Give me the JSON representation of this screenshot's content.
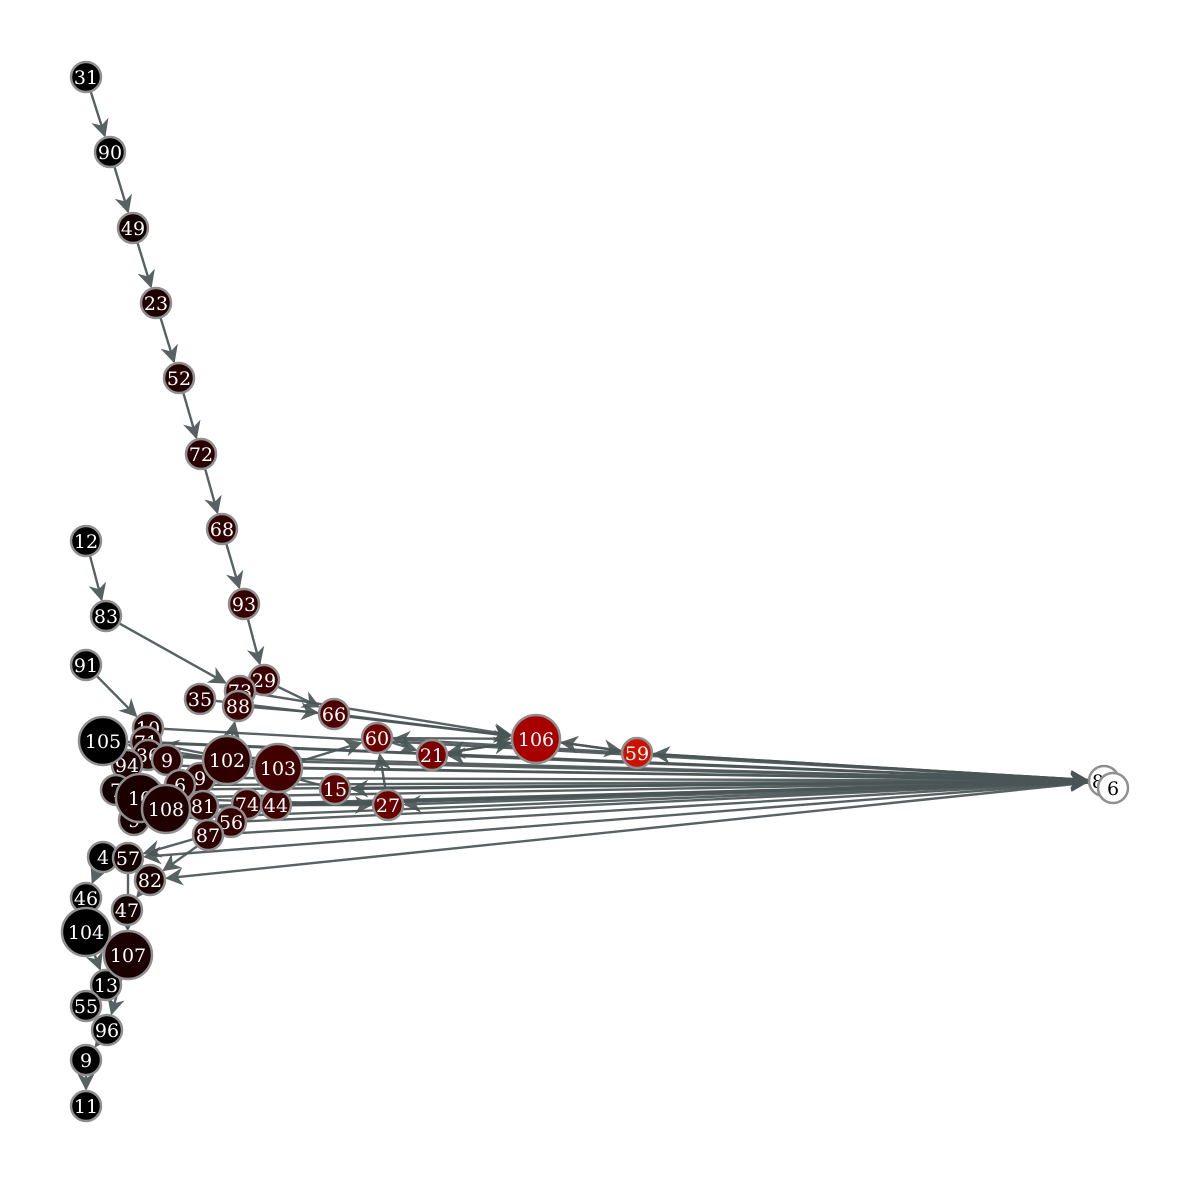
{
  "graph": {
    "nodes": [
      {
        "id": "31",
        "label": "31",
        "color": "#000000",
        "size": "small"
      },
      {
        "id": "90",
        "label": "90",
        "color": "#000000",
        "size": "small"
      },
      {
        "id": "49",
        "label": "49",
        "color": "#100000",
        "size": "small"
      },
      {
        "id": "23",
        "label": "23",
        "color": "#200000",
        "size": "small"
      },
      {
        "id": "52",
        "label": "52",
        "color": "#240000",
        "size": "small"
      },
      {
        "id": "72",
        "label": "72",
        "color": "#2a0000",
        "size": "small"
      },
      {
        "id": "68",
        "label": "68",
        "color": "#300000",
        "size": "small"
      },
      {
        "id": "93",
        "label": "93",
        "color": "#360000",
        "size": "small"
      },
      {
        "id": "29",
        "label": "29",
        "color": "#3c0000",
        "size": "small"
      },
      {
        "id": "12",
        "label": "12",
        "color": "#000000",
        "size": "small"
      },
      {
        "id": "83",
        "label": "83",
        "color": "#000000",
        "size": "small"
      },
      {
        "id": "91",
        "label": "91",
        "color": "#000000",
        "size": "small"
      },
      {
        "id": "35",
        "label": "35",
        "color": "#2a0000",
        "size": "small"
      },
      {
        "id": "73",
        "label": "73",
        "color": "#380000",
        "size": "small"
      },
      {
        "id": "88",
        "label": "88",
        "color": "#3a0000",
        "size": "small"
      },
      {
        "id": "66",
        "label": "66",
        "color": "#4e0000",
        "size": "small"
      },
      {
        "id": "60",
        "label": "60",
        "color": "#6e0000",
        "size": "small"
      },
      {
        "id": "21",
        "label": "21",
        "color": "#7a0000",
        "size": "small"
      },
      {
        "id": "106",
        "label": "106",
        "color": "#a80000",
        "size": "large"
      },
      {
        "id": "59",
        "label": "59",
        "color": "#cc1100",
        "size": "small"
      },
      {
        "id": "84",
        "label": "84",
        "color": "#ffffff",
        "size": "small"
      },
      {
        "id": "85",
        "label": "6",
        "color": "#ffffff",
        "size": "small"
      },
      {
        "id": "105",
        "label": "105",
        "color": "#000000",
        "size": "large"
      },
      {
        "id": "10",
        "label": "10",
        "color": "#220000",
        "size": "small"
      },
      {
        "id": "71",
        "label": "71",
        "color": "#250000",
        "size": "small"
      },
      {
        "id": "36",
        "label": "36",
        "color": "#260000",
        "size": "small"
      },
      {
        "id": "94",
        "label": "94",
        "color": "#1c0000",
        "size": "small"
      },
      {
        "id": "69",
        "label": "9",
        "color": "#2a0000",
        "size": "small"
      },
      {
        "id": "102",
        "label": "102",
        "color": "#300000",
        "size": "large"
      },
      {
        "id": "103",
        "label": "103",
        "color": "#420000",
        "size": "large"
      },
      {
        "id": "99",
        "label": "9",
        "color": "#2c0000",
        "size": "small"
      },
      {
        "id": "61",
        "label": "6",
        "color": "#280000",
        "size": "small"
      },
      {
        "id": "15",
        "label": "15",
        "color": "#5a0000",
        "size": "small"
      },
      {
        "id": "27",
        "label": "27",
        "color": "#6a0000",
        "size": "small"
      },
      {
        "id": "75",
        "label": "7",
        "color": "#120000",
        "size": "small"
      },
      {
        "id": "100",
        "label": "10",
        "color": "#1a0000",
        "size": "large"
      },
      {
        "id": "108",
        "label": "108",
        "color": "#200000",
        "size": "large"
      },
      {
        "id": "95",
        "label": "9",
        "color": "#160000",
        "size": "small"
      },
      {
        "id": "81",
        "label": "81",
        "color": "#2c0000",
        "size": "small"
      },
      {
        "id": "74",
        "label": "74",
        "color": "#3a0000",
        "size": "small"
      },
      {
        "id": "44",
        "label": "44",
        "color": "#400000",
        "size": "small"
      },
      {
        "id": "56",
        "label": "56",
        "color": "#340000",
        "size": "small"
      },
      {
        "id": "87",
        "label": "87",
        "color": "#300000",
        "size": "small"
      },
      {
        "id": "4",
        "label": "4",
        "color": "#000000",
        "size": "small"
      },
      {
        "id": "57",
        "label": "57",
        "color": "#120000",
        "size": "small"
      },
      {
        "id": "82",
        "label": "82",
        "color": "#1a0000",
        "size": "small"
      },
      {
        "id": "46",
        "label": "46",
        "color": "#000000",
        "size": "small"
      },
      {
        "id": "47",
        "label": "47",
        "color": "#140000",
        "size": "small"
      },
      {
        "id": "104",
        "label": "104",
        "color": "#000000",
        "size": "large"
      },
      {
        "id": "107",
        "label": "107",
        "color": "#1a0000",
        "size": "large"
      },
      {
        "id": "13",
        "label": "13",
        "color": "#000000",
        "size": "small"
      },
      {
        "id": "55",
        "label": "55",
        "color": "#000000",
        "size": "small"
      },
      {
        "id": "96",
        "label": "96",
        "color": "#000000",
        "size": "small"
      },
      {
        "id": "9",
        "label": "9",
        "color": "#000000",
        "size": "small"
      },
      {
        "id": "11",
        "label": "11",
        "color": "#000000",
        "size": "small"
      }
    ],
    "edges": [
      [
        "31",
        "90"
      ],
      [
        "90",
        "49"
      ],
      [
        "49",
        "23"
      ],
      [
        "23",
        "52"
      ],
      [
        "52",
        "72"
      ],
      [
        "72",
        "68"
      ],
      [
        "68",
        "93"
      ],
      [
        "93",
        "29"
      ],
      [
        "12",
        "83"
      ],
      [
        "83",
        "73"
      ],
      [
        "91",
        "10"
      ],
      [
        "29",
        "66"
      ],
      [
        "88",
        "66"
      ],
      [
        "35",
        "106"
      ],
      [
        "66",
        "106"
      ],
      [
        "73",
        "106"
      ],
      [
        "59",
        "106"
      ],
      [
        "106",
        "59"
      ],
      [
        "59",
        "84"
      ],
      [
        "84",
        "59"
      ],
      [
        "60",
        "21"
      ],
      [
        "21",
        "106"
      ],
      [
        "106",
        "21"
      ],
      [
        "60",
        "106"
      ],
      [
        "103",
        "60"
      ],
      [
        "105",
        "84"
      ],
      [
        "10",
        "84"
      ],
      [
        "71",
        "84"
      ],
      [
        "36",
        "84"
      ],
      [
        "94",
        "84"
      ],
      [
        "102",
        "84"
      ],
      [
        "103",
        "84"
      ],
      [
        "99",
        "84"
      ],
      [
        "61",
        "84"
      ],
      [
        "15",
        "84"
      ],
      [
        "100",
        "84"
      ],
      [
        "108",
        "84"
      ],
      [
        "81",
        "84"
      ],
      [
        "74",
        "84"
      ],
      [
        "44",
        "84"
      ],
      [
        "56",
        "84"
      ],
      [
        "87",
        "84"
      ],
      [
        "75",
        "84"
      ],
      [
        "95",
        "84"
      ],
      [
        "84",
        "27"
      ],
      [
        "84",
        "57"
      ],
      [
        "84",
        "82"
      ],
      [
        "84",
        "21"
      ],
      [
        "84",
        "15"
      ],
      [
        "84",
        "60"
      ],
      [
        "27",
        "100"
      ],
      [
        "15",
        "102"
      ],
      [
        "27",
        "60"
      ],
      [
        "44",
        "27"
      ],
      [
        "102",
        "36"
      ],
      [
        "102",
        "88"
      ],
      [
        "103",
        "71"
      ],
      [
        "108",
        "94"
      ],
      [
        "103",
        "105"
      ],
      [
        "57",
        "4"
      ],
      [
        "82",
        "47"
      ],
      [
        "4",
        "46"
      ],
      [
        "47",
        "107"
      ],
      [
        "46",
        "104"
      ],
      [
        "104",
        "13"
      ],
      [
        "107",
        "13"
      ],
      [
        "13",
        "55"
      ],
      [
        "55",
        "96"
      ],
      [
        "96",
        "9"
      ],
      [
        "9",
        "11"
      ],
      [
        "107",
        "96"
      ],
      [
        "82",
        "57"
      ],
      [
        "57",
        "107"
      ],
      [
        "56",
        "82"
      ],
      [
        "87",
        "57"
      ]
    ]
  }
}
